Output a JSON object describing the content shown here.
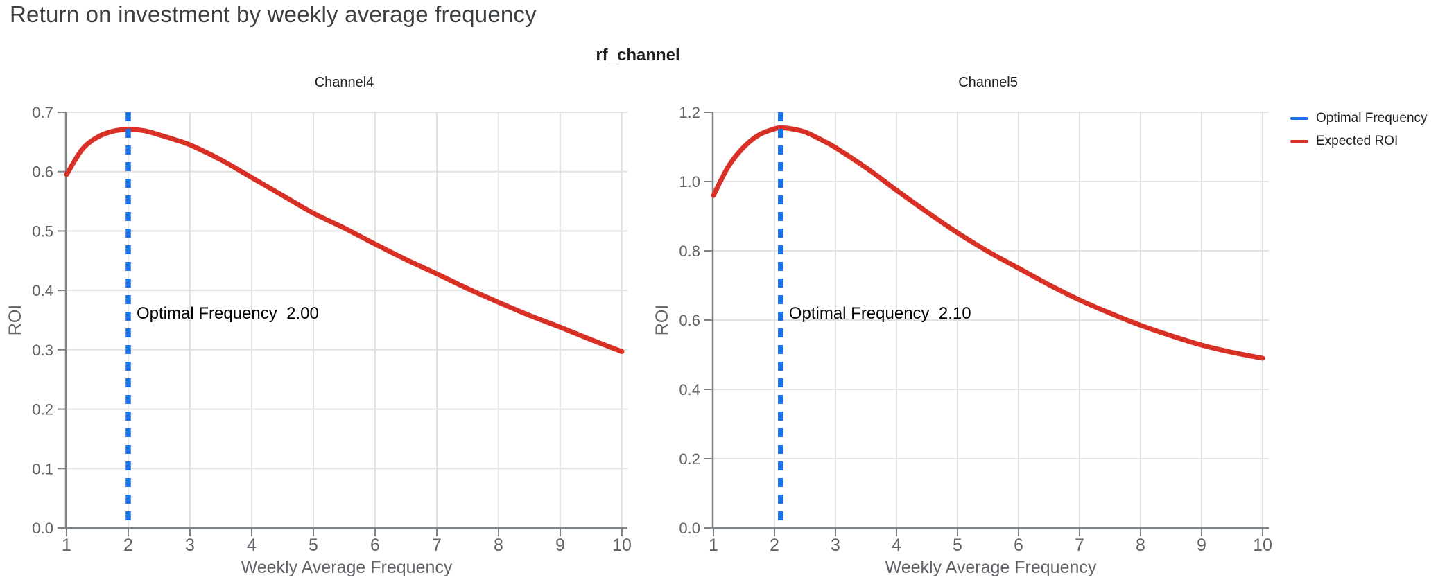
{
  "page": {
    "title": "Return on investment by weekly average frequency"
  },
  "figure": {
    "subtitle": "rf_channel",
    "legend": [
      {
        "label": "Optimal Frequency",
        "color": "#1A73E8"
      },
      {
        "label": "Expected ROI",
        "color": "#D93025"
      }
    ]
  },
  "colors": {
    "optimal_frequency": "#1A73E8",
    "expected_roi": "#D93025",
    "grid": "#E3E3E3",
    "axis": "#7E8387",
    "tick_label": "#5F6368",
    "chart_title": "#202124",
    "annotation": "#000000",
    "page_title": "#3C4043"
  },
  "chart_data": [
    {
      "type": "line",
      "title": "Channel4",
      "xlabel": "Weekly Average Frequency",
      "ylabel": "ROI",
      "xlim": [
        1,
        10
      ],
      "ylim": [
        0,
        0.7
      ],
      "grid": true,
      "x_ticks": [
        1,
        2,
        3,
        4,
        5,
        6,
        7,
        8,
        9,
        10
      ],
      "y_ticks": [
        0,
        0.1,
        0.2,
        0.3,
        0.4,
        0.5,
        0.6,
        0.7
      ],
      "y_tick_labels": [
        "0.0",
        "0.1",
        "0.2",
        "0.3",
        "0.4",
        "0.5",
        "0.6",
        "0.7"
      ],
      "optimal_frequency": 2.0,
      "annotation": "Optimal Frequency  2.00",
      "series": [
        {
          "name": "Expected ROI",
          "x": [
            1,
            1.25,
            1.5,
            1.75,
            2,
            2.25,
            2.5,
            2.75,
            3,
            3.5,
            4,
            4.5,
            5,
            5.5,
            6,
            6.5,
            7,
            7.5,
            8,
            8.5,
            9,
            9.5,
            10
          ],
          "y": [
            0.595,
            0.637,
            0.658,
            0.668,
            0.671,
            0.669,
            0.662,
            0.654,
            0.645,
            0.62,
            0.59,
            0.56,
            0.53,
            0.505,
            0.478,
            0.452,
            0.428,
            0.403,
            0.38,
            0.358,
            0.338,
            0.317,
            0.297
          ]
        }
      ]
    },
    {
      "type": "line",
      "title": "Channel5",
      "xlabel": "Weekly Average Frequency",
      "ylabel": "ROI",
      "xlim": [
        1,
        10
      ],
      "ylim": [
        0,
        1.2
      ],
      "grid": true,
      "x_ticks": [
        1,
        2,
        3,
        4,
        5,
        6,
        7,
        8,
        9,
        10
      ],
      "y_ticks": [
        0,
        0.2,
        0.4,
        0.6,
        0.8,
        1.0,
        1.2
      ],
      "y_tick_labels": [
        "0.0",
        "0.2",
        "0.4",
        "0.6",
        "0.8",
        "1.0",
        "1.2"
      ],
      "optimal_frequency": 2.1,
      "annotation": "Optimal Frequency  2.10",
      "series": [
        {
          "name": "Expected ROI",
          "x": [
            1,
            1.25,
            1.5,
            1.75,
            2,
            2.1,
            2.25,
            2.5,
            2.75,
            3,
            3.5,
            4,
            4.5,
            5,
            5.5,
            6,
            6.5,
            7,
            7.5,
            8,
            8.5,
            9,
            9.5,
            10
          ],
          "y": [
            0.96,
            1.045,
            1.1,
            1.135,
            1.152,
            1.155,
            1.153,
            1.143,
            1.122,
            1.098,
            1.04,
            0.975,
            0.912,
            0.852,
            0.798,
            0.75,
            0.702,
            0.658,
            0.62,
            0.585,
            0.555,
            0.528,
            0.507,
            0.49
          ]
        }
      ]
    }
  ]
}
